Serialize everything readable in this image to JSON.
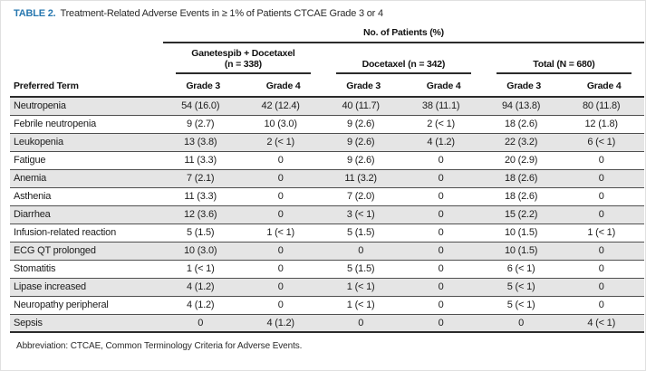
{
  "title": {
    "label": "TABLE 2.",
    "text": "Treatment-Related Adverse Events in ≥ 1% of Patients CTCAE Grade 3 or 4"
  },
  "table": {
    "spanner": "No. of Patients (%)",
    "row_header": "Preferred Term",
    "groups": [
      {
        "line1": "Ganetespib + Docetaxel",
        "line2": "(n = 338)"
      },
      {
        "line1": "",
        "line2": "Docetaxel (n = 342)"
      },
      {
        "line1": "",
        "line2": "Total (N = 680)"
      }
    ],
    "grade_headers": [
      "Grade 3",
      "Grade 4",
      "Grade 3",
      "Grade 4",
      "Grade 3",
      "Grade 4"
    ],
    "rows": [
      {
        "term": "Neutropenia",
        "values": [
          "54 (16.0)",
          "42 (12.4)",
          "40 (11.7)",
          "38 (11.1)",
          "94 (13.8)",
          "80 (11.8)"
        ]
      },
      {
        "term": "Febrile neutropenia",
        "values": [
          "9 (2.7)",
          "10 (3.0)",
          "9 (2.6)",
          "2 (< 1)",
          "18 (2.6)",
          "12 (1.8)"
        ]
      },
      {
        "term": "Leukopenia",
        "values": [
          "13 (3.8)",
          "2 (< 1)",
          "9 (2.6)",
          "4 (1.2)",
          "22 (3.2)",
          "6 (< 1)"
        ]
      },
      {
        "term": "Fatigue",
        "values": [
          "11 (3.3)",
          "0",
          "9 (2.6)",
          "0",
          "20 (2.9)",
          "0"
        ]
      },
      {
        "term": "Anemia",
        "values": [
          "7 (2.1)",
          "0",
          "11 (3.2)",
          "0",
          "18 (2.6)",
          "0"
        ]
      },
      {
        "term": "Asthenia",
        "values": [
          "11 (3.3)",
          "0",
          "7 (2.0)",
          "0",
          "18 (2.6)",
          "0"
        ]
      },
      {
        "term": "Diarrhea",
        "values": [
          "12 (3.6)",
          "0",
          "3 (< 1)",
          "0",
          "15 (2.2)",
          "0"
        ]
      },
      {
        "term": "Infusion-related reaction",
        "values": [
          "5 (1.5)",
          "1 (< 1)",
          "5 (1.5)",
          "0",
          "10 (1.5)",
          "1 (< 1)"
        ]
      },
      {
        "term": "ECG QT prolonged",
        "values": [
          "10 (3.0)",
          "0",
          "0",
          "0",
          "10 (1.5)",
          "0"
        ]
      },
      {
        "term": "Stomatitis",
        "values": [
          "1 (< 1)",
          "0",
          "5 (1.5)",
          "0",
          "6 (< 1)",
          "0"
        ]
      },
      {
        "term": "Lipase increased",
        "values": [
          "4 (1.2)",
          "0",
          "1 (< 1)",
          "0",
          "5 (< 1)",
          "0"
        ]
      },
      {
        "term": "Neuropathy peripheral",
        "values": [
          "4 (1.2)",
          "0",
          "1 (< 1)",
          "0",
          "5 (< 1)",
          "0"
        ]
      },
      {
        "term": "Sepsis",
        "values": [
          "0",
          "4 (1.2)",
          "0",
          "0",
          "0",
          "4 (< 1)"
        ]
      }
    ]
  },
  "footnote": "Abbreviation: CTCAE, Common Terminology Criteria for Adverse Events.",
  "colors": {
    "accent_blue": "#2878b0",
    "row_shade": "#e5e5e5",
    "rule_dark": "#2b2b2b"
  }
}
